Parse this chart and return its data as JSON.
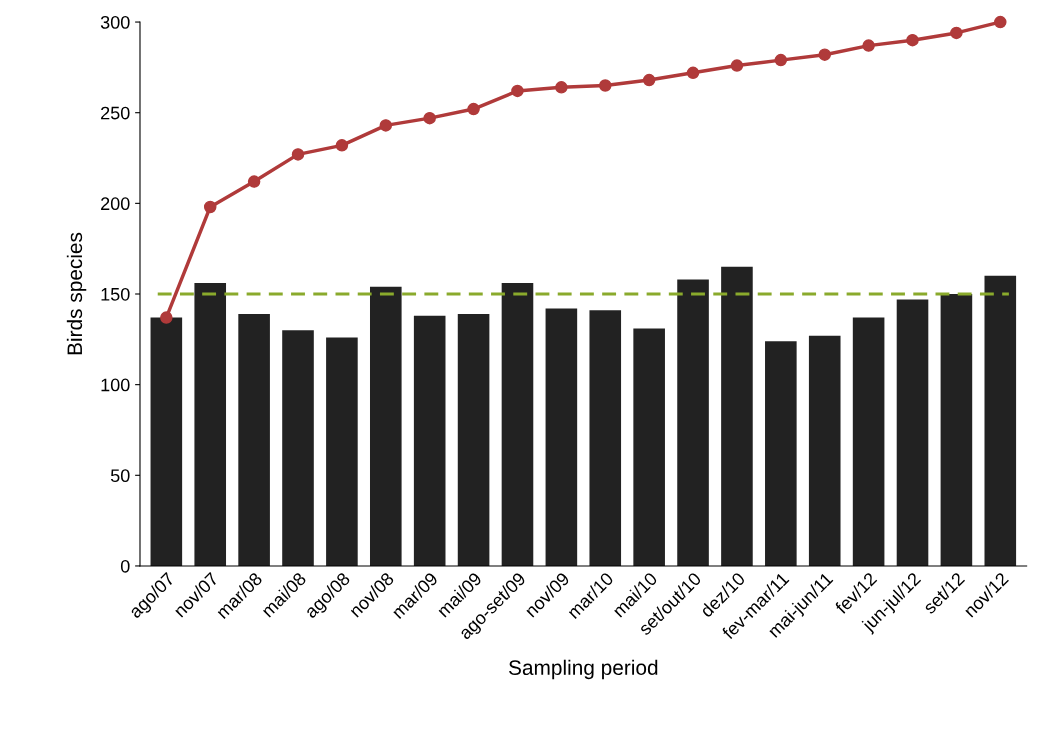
{
  "chart_data": {
    "type": "bar",
    "xlabel": "Sampling period",
    "ylabel": "Birds species",
    "categories": [
      "ago/07",
      "nov/07",
      "mar/08",
      "mai/08",
      "ago/08",
      "nov/08",
      "mar/09",
      "mai/09",
      "ago-set/09",
      "nov/09",
      "mar/10",
      "mai/10",
      "set/out/10",
      "dez/10",
      "fev-mar/11",
      "mai-jun/11",
      "fev/12",
      "jun-jul/12",
      "set/12",
      "nov/12"
    ],
    "series": [
      {
        "color": "#222222",
        "values": [
          137,
          156,
          139,
          130,
          126,
          154,
          138,
          139,
          156,
          142,
          141,
          131,
          158,
          165,
          124,
          127,
          137,
          147,
          150,
          160
        ]
      },
      {
        "type": "line",
        "color": "#b03a3a",
        "marker": "circle",
        "values": [
          137,
          198,
          212,
          227,
          232,
          243,
          247,
          252,
          262,
          264,
          265,
          268,
          272,
          276,
          279,
          282,
          287,
          290,
          294,
          300
        ]
      }
    ],
    "ylim": [
      0,
      300
    ],
    "yticks": [
      0,
      50,
      100,
      150,
      200,
      250,
      300
    ],
    "ref_lines": [
      {
        "axis": "y",
        "value": 150,
        "color": "#8aaa2c",
        "line_style": "dashed"
      }
    ],
    "grid": false,
    "legend": false
  }
}
